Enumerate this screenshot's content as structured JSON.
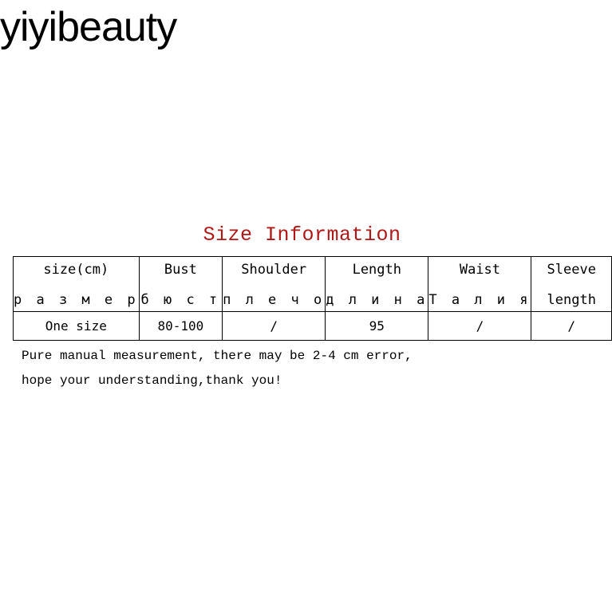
{
  "brand": "yiyibeauty",
  "title": "Size Information",
  "colors": {
    "title": "#b01818"
  },
  "table": {
    "headers": [
      {
        "en": "size(cm)",
        "ru": "р а з м е р"
      },
      {
        "en": "Bust",
        "ru": "б ю с т"
      },
      {
        "en": "Shoulder",
        "ru": "п л е ч о"
      },
      {
        "en": "Length",
        "ru": "д л и н а"
      },
      {
        "en": "Waist",
        "ru": "Т а л и я"
      },
      {
        "en": "Sleeve",
        "ru": "length"
      }
    ],
    "rows": [
      [
        "One size",
        "80-100",
        "/",
        "95",
        "/",
        "/"
      ]
    ]
  },
  "notes": [
    "Pure manual measurement, there may be 2-4 cm error,",
    "hope your understanding,thank you!"
  ]
}
